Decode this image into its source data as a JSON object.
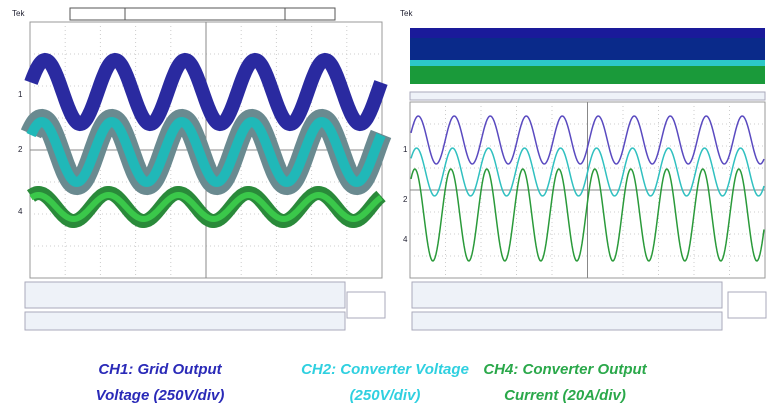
{
  "scopes": [
    {
      "brand": "Tek",
      "channels": [
        "1",
        "2",
        "4"
      ]
    },
    {
      "brand": "Tek",
      "channels": [
        "1",
        "2",
        "4"
      ]
    }
  ],
  "captions": [
    {
      "line1": "CH1: Grid Output",
      "line2": "Voltage (250V/div)"
    },
    {
      "line1": "CH2: Converter Voltage",
      "line2": "(250V/div)"
    },
    {
      "line1": "CH4: Converter Output",
      "line2": "Current (20A/div)"
    }
  ]
}
